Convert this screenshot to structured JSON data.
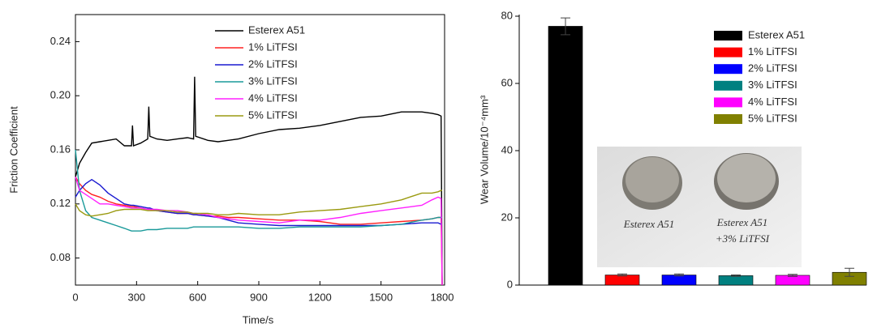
{
  "chart_data": [
    {
      "type": "line",
      "x_label": "Time/s",
      "y_label": "Friction Coefficient",
      "xlim": [
        0,
        1800
      ],
      "xticks": [
        0,
        300,
        600,
        900,
        1200,
        1500,
        1800
      ],
      "ylim": [
        0.06,
        0.26
      ],
      "yticks": [
        0.08,
        0.12,
        0.16,
        {
          "value": 0.2,
          "label": "0.20"
        },
        0.24
      ],
      "x": [
        0,
        20,
        50,
        80,
        120,
        160,
        200,
        240,
        275,
        280,
        285,
        320,
        355,
        360,
        365,
        400,
        450,
        500,
        550,
        580,
        585,
        590,
        650,
        700,
        750,
        800,
        900,
        1000,
        1100,
        1200,
        1300,
        1400,
        1500,
        1600,
        1700,
        1750,
        1780,
        1795,
        1800
      ],
      "series": [
        {
          "name": "Esterex A51",
          "color": "#000000",
          "values": [
            0.14,
            0.15,
            0.158,
            0.165,
            0.166,
            0.167,
            0.168,
            0.163,
            0.163,
            0.178,
            0.163,
            0.165,
            0.168,
            0.192,
            0.17,
            0.168,
            0.167,
            0.168,
            0.169,
            0.168,
            0.214,
            0.17,
            0.167,
            0.166,
            0.167,
            0.168,
            0.172,
            0.175,
            0.176,
            0.178,
            0.181,
            0.184,
            0.185,
            0.188,
            0.188,
            0.187,
            0.186,
            0.185,
            0.06
          ]
        },
        {
          "name": "1% LiTFSI",
          "color": "#ff2020",
          "values": [
            0.14,
            0.135,
            0.13,
            0.127,
            0.125,
            0.122,
            0.12,
            0.119,
            0.118,
            0.118,
            0.118,
            0.117,
            0.116,
            0.116,
            0.116,
            0.115,
            0.114,
            0.113,
            0.113,
            0.112,
            0.112,
            0.112,
            0.111,
            0.111,
            0.11,
            0.11,
            0.109,
            0.108,
            0.108,
            0.107,
            0.105,
            0.105,
            0.106,
            0.107,
            0.108,
            0.109,
            0.11,
            0.11,
            0.06
          ]
        },
        {
          "name": "2% LiTFSI",
          "color": "#1a1ad0",
          "values": [
            0.125,
            0.13,
            0.135,
            0.138,
            0.134,
            0.128,
            0.124,
            0.12,
            0.119,
            0.119,
            0.119,
            0.118,
            0.117,
            0.117,
            0.117,
            0.115,
            0.114,
            0.113,
            0.113,
            0.112,
            0.112,
            0.112,
            0.111,
            0.11,
            0.108,
            0.106,
            0.105,
            0.104,
            0.104,
            0.104,
            0.104,
            0.104,
            0.104,
            0.105,
            0.106,
            0.106,
            0.106,
            0.105,
            0.105
          ]
        },
        {
          "name": "3% LiTFSI",
          "color": "#1a9a9a",
          "values": [
            0.16,
            0.13,
            0.115,
            0.11,
            0.108,
            0.106,
            0.104,
            0.102,
            0.1,
            0.1,
            0.1,
            0.1,
            0.101,
            0.101,
            0.101,
            0.101,
            0.102,
            0.102,
            0.102,
            0.103,
            0.103,
            0.103,
            0.103,
            0.103,
            0.103,
            0.103,
            0.102,
            0.102,
            0.103,
            0.103,
            0.103,
            0.103,
            0.104,
            0.105,
            0.108,
            0.109,
            0.11,
            0.11,
            0.11
          ]
        },
        {
          "name": "4% LiTFSI",
          "color": "#ff20ff",
          "values": [
            0.14,
            0.13,
            0.127,
            0.124,
            0.12,
            0.12,
            0.119,
            0.118,
            0.117,
            0.117,
            0.117,
            0.117,
            0.116,
            0.116,
            0.116,
            0.116,
            0.115,
            0.115,
            0.114,
            0.113,
            0.113,
            0.113,
            0.112,
            0.11,
            0.109,
            0.108,
            0.107,
            0.106,
            0.108,
            0.108,
            0.11,
            0.113,
            0.115,
            0.117,
            0.119,
            0.123,
            0.125,
            0.124,
            0.06
          ]
        },
        {
          "name": "5% LiTFSI",
          "color": "#9a9a10",
          "values": [
            0.12,
            0.115,
            0.112,
            0.111,
            0.112,
            0.113,
            0.115,
            0.116,
            0.116,
            0.116,
            0.116,
            0.116,
            0.115,
            0.115,
            0.115,
            0.115,
            0.115,
            0.114,
            0.114,
            0.113,
            0.113,
            0.113,
            0.113,
            0.112,
            0.112,
            0.113,
            0.112,
            0.112,
            0.114,
            0.115,
            0.116,
            0.118,
            0.12,
            0.123,
            0.128,
            0.128,
            0.129,
            0.13,
            0.13
          ]
        }
      ]
    },
    {
      "type": "bar",
      "y_label": "Wear Volume/10⁻⁴mm³",
      "ylim": [
        0,
        80
      ],
      "yticks": [
        0,
        20,
        40,
        60,
        80
      ],
      "categories": [
        "Esterex A51",
        "1% LiTFSI",
        "2% LiTFSI",
        "3% LiTFSI",
        "4% LiTFSI",
        "5% LiTFSI"
      ],
      "colors": [
        "#000000",
        "#ff0000",
        "#0000ff",
        "#008080",
        "#ff00ff",
        "#808000"
      ],
      "values": [
        77,
        3,
        3,
        2.8,
        2.9,
        3.8
      ],
      "errors": [
        2.5,
        0.3,
        0.3,
        0.2,
        0.3,
        1.2
      ],
      "annotations": [
        "Esterex A51",
        "Esterex A51",
        "+3% LiTFSI"
      ]
    }
  ]
}
